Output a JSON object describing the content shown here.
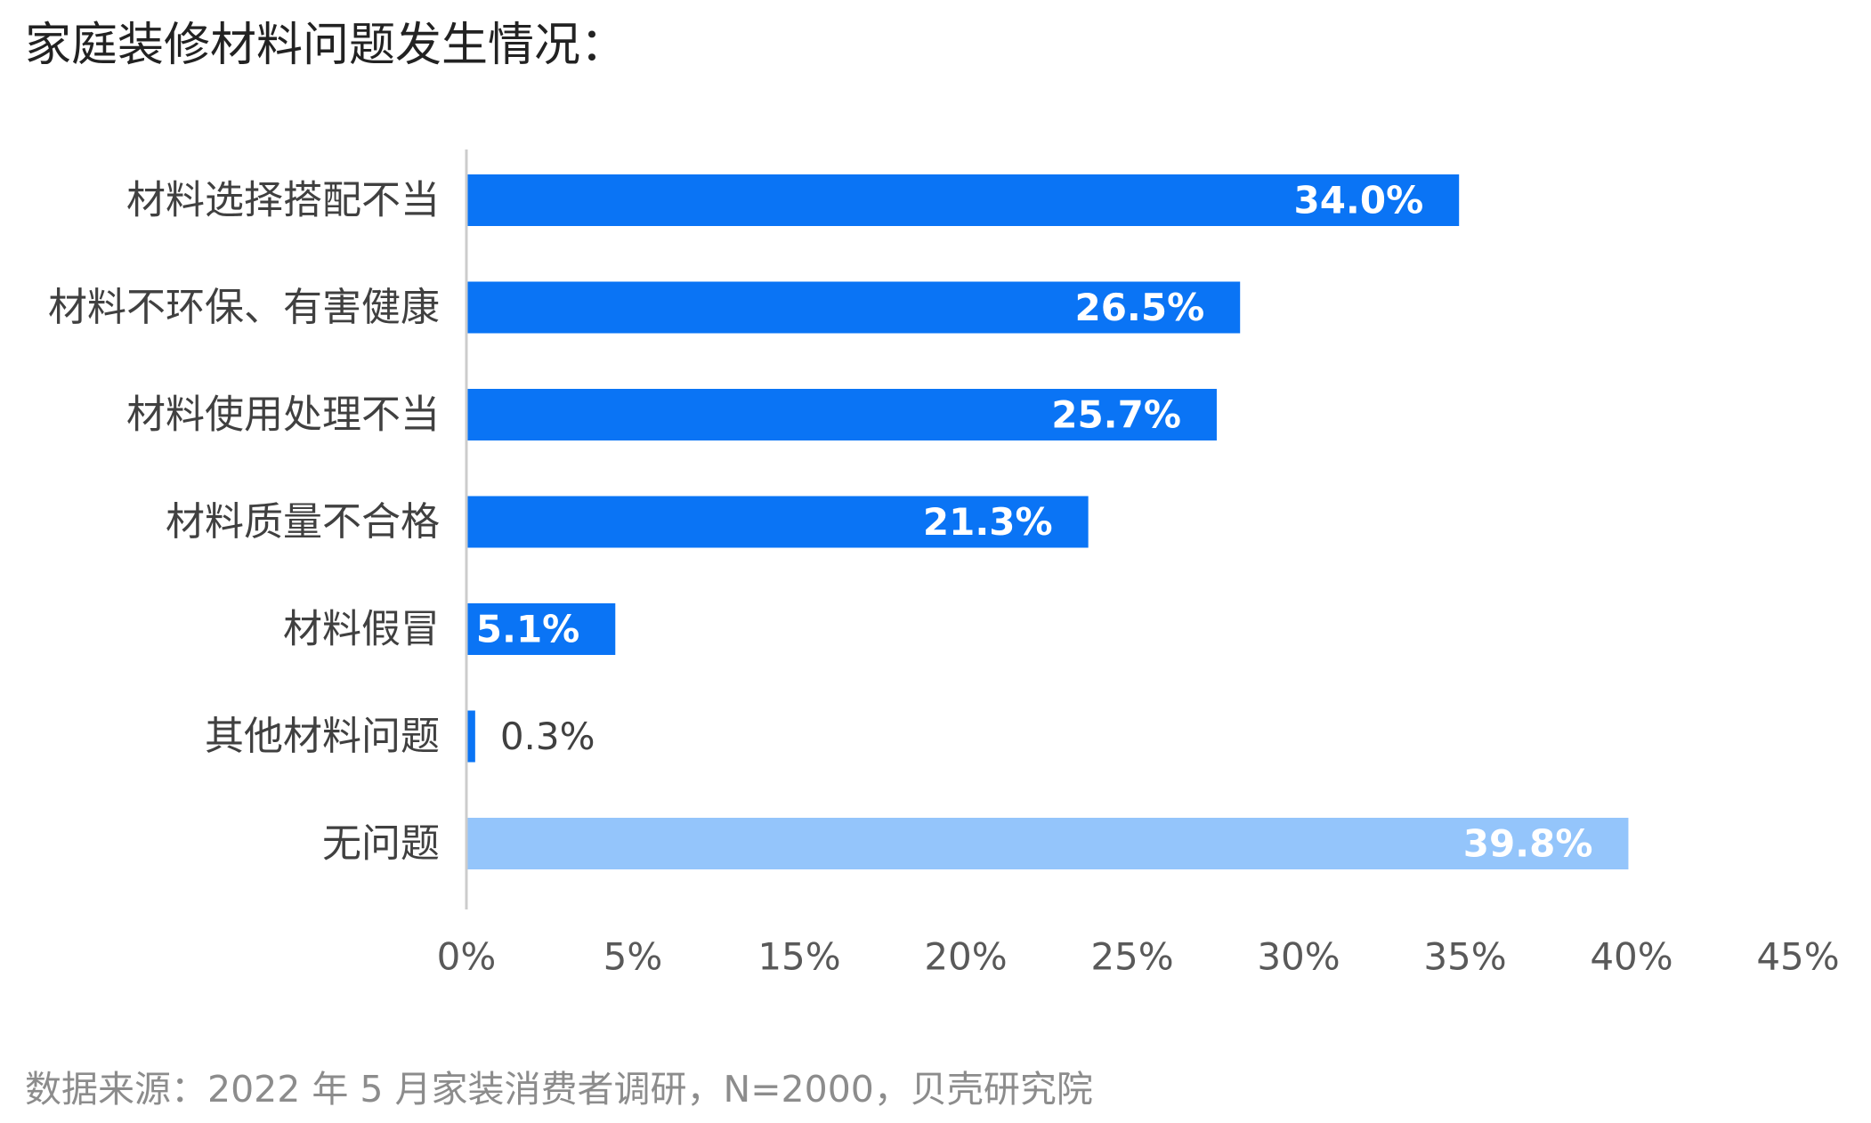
{
  "title": "家庭装修材料问题发生情况：",
  "source": "数据来源：2022 年 5 月家装消费者调研，N=2000，贝壳研究院",
  "colors": {
    "bar": "#0a74f5",
    "bar_highlight": "#94c5fb",
    "axis": "#cccccc",
    "category_text": "#404040",
    "tick_text": "#595959",
    "inside_label": "#ffffff",
    "outside_label": "#404040"
  },
  "chart_data": {
    "type": "bar",
    "orientation": "horizontal",
    "categories": [
      "材料选择搭配不当",
      "材料不环保、有害健康",
      "材料使用处理不当",
      "材料质量不合格",
      "材料假冒",
      "其他材料问题",
      "无问题"
    ],
    "values": [
      34.0,
      26.5,
      25.7,
      21.3,
      5.1,
      0.3,
      39.8
    ],
    "data_labels": [
      "34.0%",
      "26.5%",
      "25.7%",
      "21.3%",
      "5.1%",
      "0.3%",
      "39.8%"
    ],
    "highlight_index": 6,
    "x_ticks": [
      "0%",
      "5%",
      "15%",
      "20%",
      "25%",
      "30%",
      "35%",
      "40%",
      "45%"
    ],
    "xlim": [
      0,
      40
    ],
    "grid": false,
    "legend": "none"
  }
}
